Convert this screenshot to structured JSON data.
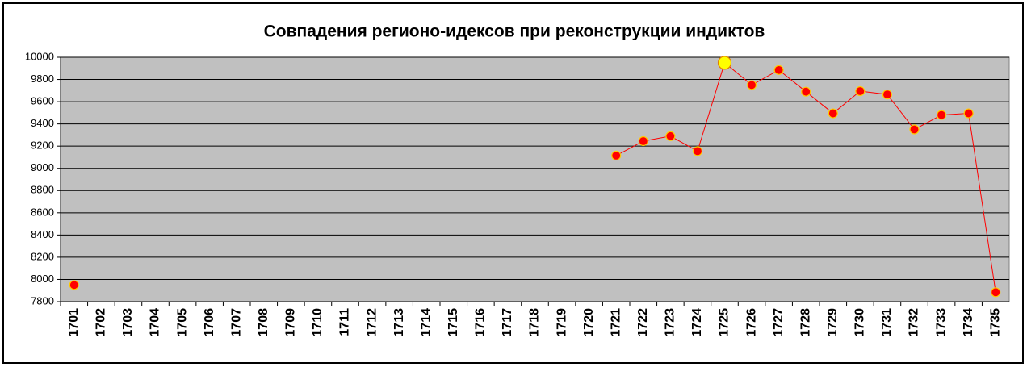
{
  "chart_data": {
    "type": "line",
    "title": "Совпадения регионо-идексов при реконструкции индиктов",
    "categories": [
      "1701",
      "1702",
      "1703",
      "1704",
      "1705",
      "1706",
      "1707",
      "1708",
      "1709",
      "1710",
      "1711",
      "1712",
      "1713",
      "1714",
      "1715",
      "1716",
      "1717",
      "1718",
      "1719",
      "1720",
      "1721",
      "1722",
      "1723",
      "1724",
      "1725",
      "1726",
      "1727",
      "1728",
      "1729",
      "1730",
      "1731",
      "1732",
      "1733",
      "1734",
      "1735"
    ],
    "series": [
      {
        "color": "#ff0000",
        "values": [
          7950,
          null,
          null,
          null,
          null,
          null,
          null,
          null,
          null,
          null,
          null,
          null,
          null,
          null,
          null,
          null,
          null,
          null,
          null,
          null,
          9115,
          9245,
          9290,
          9155,
          9950,
          9750,
          9885,
          9690,
          9495,
          9695,
          9665,
          9350,
          9480,
          9495,
          7885
        ],
        "marker_colors": [
          "#ff0000",
          null,
          null,
          null,
          null,
          null,
          null,
          null,
          null,
          null,
          null,
          null,
          null,
          null,
          null,
          null,
          null,
          null,
          null,
          null,
          "#ff0000",
          "#ff0000",
          "#ff0000",
          "#ff0000",
          "#ffff00",
          "#ff0000",
          "#ff0000",
          "#ff0000",
          "#ff0000",
          "#ff0000",
          "#ff0000",
          "#ff0000",
          "#ff0000",
          "#ff0000",
          "#ff0000"
        ]
      }
    ],
    "ylim": [
      7800,
      10000
    ],
    "yticks": [
      7800,
      8000,
      8200,
      8400,
      8600,
      8800,
      9000,
      9200,
      9400,
      9600,
      9800,
      10000
    ],
    "grid": true,
    "plot_background": "#c0c0c0"
  }
}
